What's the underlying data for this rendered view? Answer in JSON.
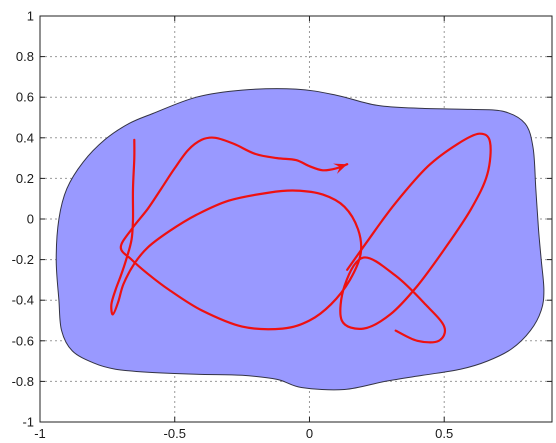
{
  "chart_data": {
    "type": "area",
    "xlim": [
      -1,
      0.9
    ],
    "ylim": [
      -1,
      1
    ],
    "x_ticks": [
      {
        "value": -1,
        "label": "-1"
      },
      {
        "value": -0.5,
        "label": "-0.5"
      },
      {
        "value": 0,
        "label": "0"
      },
      {
        "value": 0.5,
        "label": "0.5"
      }
    ],
    "y_ticks": [
      {
        "value": 1,
        "label": "1"
      },
      {
        "value": 0.8,
        "label": "0.8"
      },
      {
        "value": 0.6,
        "label": "0.6"
      },
      {
        "value": 0.4,
        "label": "0.4"
      },
      {
        "value": 0.2,
        "label": "0.2"
      },
      {
        "value": 0,
        "label": "0"
      },
      {
        "value": -0.2,
        "label": "-0.2"
      },
      {
        "value": -0.4,
        "label": "-0.4"
      },
      {
        "value": -0.6,
        "label": "-0.6"
      },
      {
        "value": -0.8,
        "label": "-0.8"
      },
      {
        "value": -1,
        "label": "-1"
      }
    ],
    "grid": true,
    "region": {
      "fill_color": "#9999ff",
      "edge_color": "#333344",
      "points": [
        [
          -0.58,
          0.52
        ],
        [
          -0.42,
          0.6
        ],
        [
          -0.25,
          0.635
        ],
        [
          -0.05,
          0.64
        ],
        [
          0.1,
          0.61
        ],
        [
          0.25,
          0.56
        ],
        [
          0.42,
          0.545
        ],
        [
          0.6,
          0.54
        ],
        [
          0.72,
          0.53
        ],
        [
          0.8,
          0.47
        ],
        [
          0.83,
          0.35
        ],
        [
          0.84,
          0.15
        ],
        [
          0.85,
          -0.05
        ],
        [
          0.86,
          -0.2
        ],
        [
          0.87,
          -0.35
        ],
        [
          0.86,
          -0.45
        ],
        [
          0.82,
          -0.55
        ],
        [
          0.75,
          -0.64
        ],
        [
          0.66,
          -0.7
        ],
        [
          0.56,
          -0.74
        ],
        [
          0.42,
          -0.77
        ],
        [
          0.28,
          -0.8
        ],
        [
          0.13,
          -0.84
        ],
        [
          -0.03,
          -0.83
        ],
        [
          -0.12,
          -0.79
        ],
        [
          -0.25,
          -0.77
        ],
        [
          -0.42,
          -0.765
        ],
        [
          -0.6,
          -0.755
        ],
        [
          -0.72,
          -0.74
        ],
        [
          -0.8,
          -0.71
        ],
        [
          -0.88,
          -0.65
        ],
        [
          -0.92,
          -0.55
        ],
        [
          -0.93,
          -0.4
        ],
        [
          -0.94,
          -0.2
        ],
        [
          -0.93,
          0.0
        ],
        [
          -0.9,
          0.15
        ],
        [
          -0.84,
          0.28
        ],
        [
          -0.76,
          0.39
        ],
        [
          -0.67,
          0.47
        ]
      ]
    },
    "trajectory": {
      "color": "#ee1111",
      "has_arrow": true,
      "points": [
        [
          -0.65,
          0.39
        ],
        [
          -0.65,
          0.3
        ],
        [
          -0.655,
          0.15
        ],
        [
          -0.655,
          0.0
        ],
        [
          -0.66,
          -0.1
        ],
        [
          -0.68,
          -0.2
        ],
        [
          -0.7,
          -0.28
        ],
        [
          -0.72,
          -0.35
        ],
        [
          -0.735,
          -0.42
        ],
        [
          -0.73,
          -0.47
        ],
        [
          -0.71,
          -0.41
        ],
        [
          -0.69,
          -0.32
        ],
        [
          -0.65,
          -0.22
        ],
        [
          -0.6,
          -0.14
        ],
        [
          -0.52,
          -0.06
        ],
        [
          -0.42,
          0.02
        ],
        [
          -0.3,
          0.09
        ],
        [
          -0.15,
          0.13
        ],
        [
          -0.05,
          0.14
        ],
        [
          0.05,
          0.12
        ],
        [
          0.13,
          0.06
        ],
        [
          0.18,
          -0.05
        ],
        [
          0.19,
          -0.17
        ],
        [
          0.15,
          -0.3
        ],
        [
          0.08,
          -0.42
        ],
        [
          0.0,
          -0.5
        ],
        [
          -0.1,
          -0.54
        ],
        [
          -0.25,
          -0.53
        ],
        [
          -0.4,
          -0.45
        ],
        [
          -0.52,
          -0.35
        ],
        [
          -0.6,
          -0.27
        ],
        [
          -0.66,
          -0.2
        ],
        [
          -0.7,
          -0.14
        ],
        [
          -0.66,
          -0.05
        ],
        [
          -0.6,
          0.05
        ],
        [
          -0.55,
          0.15
        ],
        [
          -0.5,
          0.25
        ],
        [
          -0.45,
          0.34
        ],
        [
          -0.4,
          0.39
        ],
        [
          -0.35,
          0.4
        ],
        [
          -0.28,
          0.37
        ],
        [
          -0.2,
          0.32
        ],
        [
          -0.12,
          0.3
        ],
        [
          -0.05,
          0.29
        ],
        [
          0.0,
          0.26
        ],
        [
          0.05,
          0.24
        ],
        [
          0.1,
          0.25
        ],
        [
          0.14,
          0.27
        ]
      ],
      "second_points": [
        [
          0.14,
          -0.25
        ],
        [
          0.22,
          -0.1
        ],
        [
          0.32,
          0.08
        ],
        [
          0.44,
          0.26
        ],
        [
          0.55,
          0.37
        ],
        [
          0.63,
          0.42
        ],
        [
          0.67,
          0.38
        ],
        [
          0.66,
          0.22
        ],
        [
          0.6,
          0.05
        ],
        [
          0.5,
          -0.15
        ],
        [
          0.4,
          -0.33
        ],
        [
          0.3,
          -0.47
        ],
        [
          0.2,
          -0.54
        ],
        [
          0.12,
          -0.5
        ],
        [
          0.13,
          -0.33
        ],
        [
          0.2,
          -0.19
        ],
        [
          0.32,
          -0.28
        ],
        [
          0.43,
          -0.42
        ],
        [
          0.5,
          -0.53
        ],
        [
          0.48,
          -0.6
        ],
        [
          0.4,
          -0.6
        ],
        [
          0.32,
          -0.55
        ]
      ]
    }
  }
}
